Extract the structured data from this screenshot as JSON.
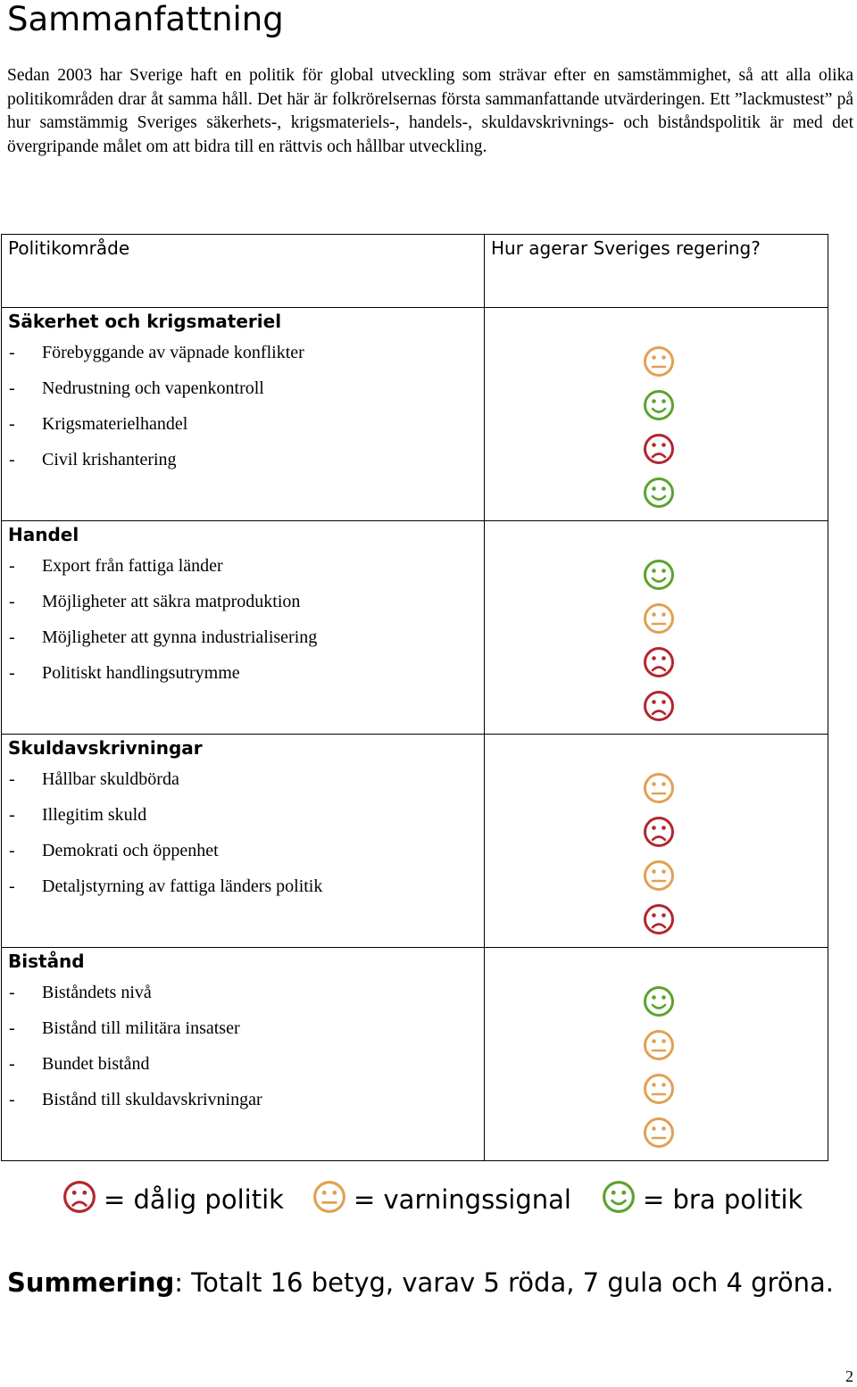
{
  "heading": "Sammanfattning",
  "intro": "Sedan 2003 har Sverige haft en politik för global utveckling som strävar efter en samstämmighet, så att alla olika politikområden drar åt samma håll. Det här är folkrörelsernas första sammanfattande utvärderingen. Ett ”lackmustest” på hur samstämmig Sveriges säkerhets-, krigsmateriels-, handels-, skuldavskrivnings- och biståndspolitik är med det övergripande målet om att bidra till en rättvis och hållbar utveckling.",
  "table": {
    "col1_header": "Politikområde",
    "col2_header": "Hur agerar Sveriges regering?",
    "sections": [
      {
        "title": "Säkerhet och krigsmateriel",
        "items": [
          {
            "label": "Förebyggande av väpnade konflikter",
            "rating": "yellow"
          },
          {
            "label": "Nedrustning och vapenkontroll",
            "rating": "green"
          },
          {
            "label": "Krigsmaterielhandel",
            "rating": "red"
          },
          {
            "label": "Civil krishantering",
            "rating": "green"
          }
        ]
      },
      {
        "title": "Handel",
        "items": [
          {
            "label": "Export från fattiga länder",
            "rating": "green"
          },
          {
            "label": "Möjligheter att säkra matproduktion",
            "rating": "yellow"
          },
          {
            "label": "Möjligheter att gynna industrialisering",
            "rating": "red"
          },
          {
            "label": "Politiskt handlingsutrymme",
            "rating": "red"
          }
        ]
      },
      {
        "title": "Skuldavskrivningar",
        "items": [
          {
            "label": "Hållbar skuldbörda",
            "rating": "yellow"
          },
          {
            "label": "Illegitim skuld",
            "rating": "red"
          },
          {
            "label": "Demokrati och öppenhet",
            "rating": "yellow"
          },
          {
            "label": "Detaljstyrning av fattiga länders politik",
            "rating": "red"
          }
        ]
      },
      {
        "title": "Bistånd",
        "items": [
          {
            "label": "Biståndets nivå",
            "rating": "green"
          },
          {
            "label": "Bistånd till militära insatser",
            "rating": "yellow"
          },
          {
            "label": "Bundet bistånd",
            "rating": "yellow"
          },
          {
            "label": "Bistånd till skuldavskrivningar",
            "rating": "yellow"
          }
        ]
      }
    ]
  },
  "legend": {
    "red": "= dålig politik",
    "yellow": "= varningssignal",
    "green": "= bra politik"
  },
  "summary": {
    "label": "Summering",
    "text": ": Totalt 16 betyg, varav 5 röda, 7 gula och 4 gröna."
  },
  "page_number": "2",
  "colors": {
    "red": "#b3262e",
    "yellow": "#e2a052",
    "green": "#5ba32e"
  }
}
